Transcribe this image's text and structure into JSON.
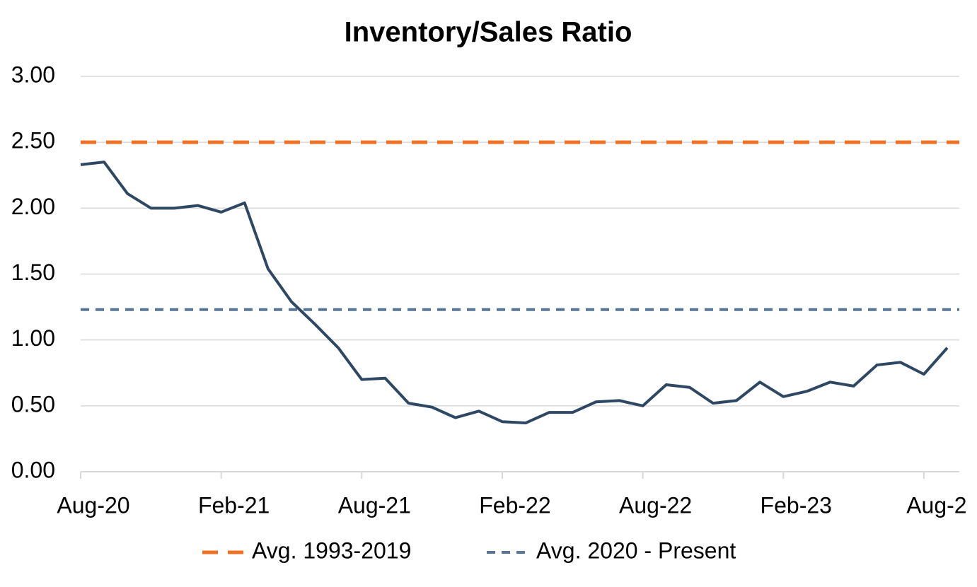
{
  "chart_data": {
    "type": "line",
    "title": "Inventory/Sales Ratio",
    "categories": [
      "Aug-20",
      null,
      null,
      null,
      null,
      null,
      "Feb-21",
      null,
      null,
      null,
      null,
      null,
      "Aug-21",
      null,
      null,
      null,
      null,
      null,
      "Feb-22",
      null,
      null,
      null,
      null,
      null,
      "Aug-22",
      null,
      null,
      null,
      null,
      null,
      "Feb-23",
      null,
      null,
      null,
      null,
      null,
      "Aug-2",
      null
    ],
    "values": [
      2.33,
      2.35,
      2.11,
      2.0,
      2.0,
      2.02,
      1.97,
      2.04,
      1.54,
      1.29,
      1.12,
      0.94,
      0.7,
      0.71,
      0.52,
      0.49,
      0.41,
      0.46,
      0.38,
      0.37,
      0.45,
      0.45,
      0.53,
      0.54,
      0.5,
      0.66,
      0.64,
      0.52,
      0.54,
      0.68,
      0.57,
      0.61,
      0.68,
      0.65,
      0.81,
      0.83,
      0.74,
      0.94
    ],
    "color": "#2e4763",
    "reference_lines": [
      {
        "name": "Avg. 1993-2019",
        "color": "#f07125",
        "value": 2.5,
        "dash": "long"
      },
      {
        "name": "Avg. 2020 - Present",
        "color": "#587698",
        "value": 1.23,
        "dash": "short"
      }
    ],
    "ylim": [
      0,
      3
    ],
    "yticks": [
      {
        "value": 0,
        "label": "0.00"
      },
      {
        "value": 0.5,
        "label": "0.50"
      },
      {
        "value": 1,
        "label": "1.00"
      },
      {
        "value": 1.5,
        "label": "1.50"
      },
      {
        "value": 2,
        "label": "2.00"
      },
      {
        "value": 2.5,
        "label": "2.50"
      },
      {
        "value": 3,
        "label": "3.00"
      }
    ],
    "grid": true
  }
}
